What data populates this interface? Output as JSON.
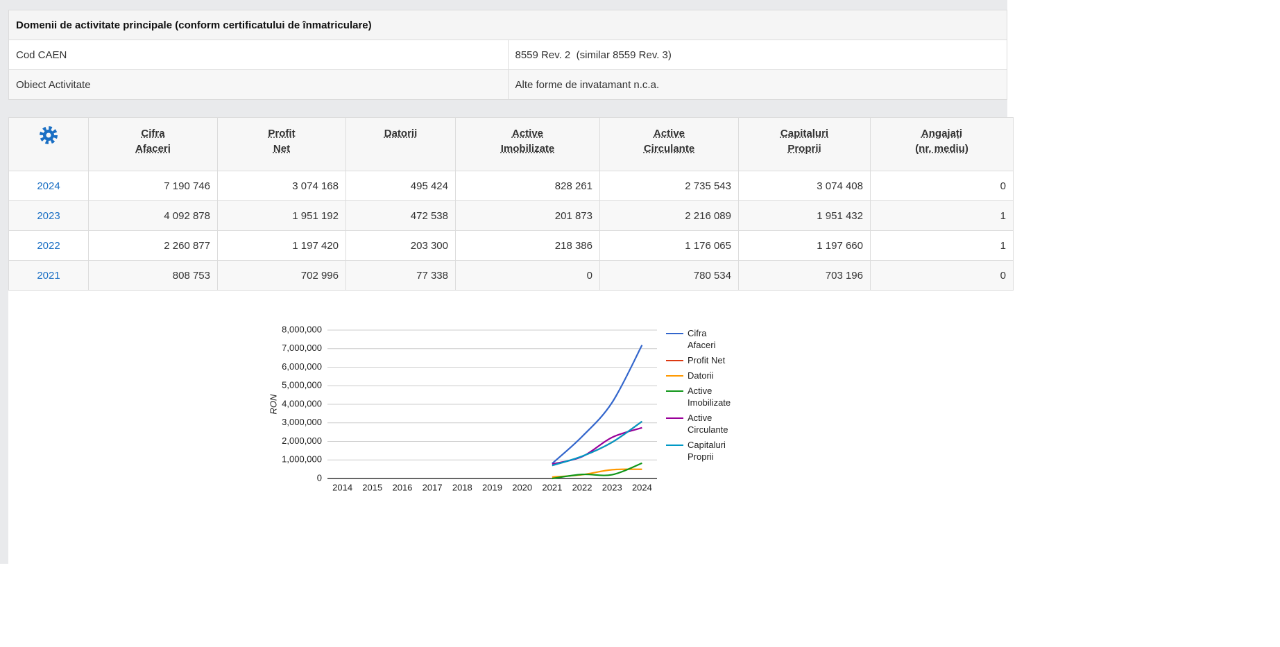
{
  "activities": {
    "title": "Domenii de activitate principale (conform certificatului de înmatriculare)",
    "rows": [
      [
        "Cod CAEN",
        "8559 Rev. 2  (similar 8559 Rev. 3)"
      ],
      [
        "Obiect Activitate",
        "Alte forme de invatamant n.c.a."
      ]
    ]
  },
  "financials": {
    "headers": [
      [
        "Cifra",
        "Afaceri"
      ],
      [
        "Profit",
        "Net"
      ],
      [
        "Datorii"
      ],
      [
        "Active",
        "Imobilizate"
      ],
      [
        "Active",
        "Circulante"
      ],
      [
        "Capitaluri",
        "Proprii"
      ],
      [
        "Angajați",
        "(nr. mediu)"
      ]
    ],
    "rows": [
      [
        "2024",
        "7 190 746",
        "3 074 168",
        "495 424",
        "828 261",
        "2 735 543",
        "3 074 408",
        "0"
      ],
      [
        "2023",
        "4 092 878",
        "1 951 192",
        "472 538",
        "201 873",
        "2 216 089",
        "1 951 432",
        "1"
      ],
      [
        "2022",
        "2 260 877",
        "1 197 420",
        "203 300",
        "218 386",
        "1 176 065",
        "1 197 660",
        "1"
      ],
      [
        "2021",
        "808 753",
        "702 996",
        "77 338",
        "0",
        "780 534",
        "703 196",
        "0"
      ]
    ]
  },
  "chart_data": {
    "type": "line",
    "ylabel": "RON",
    "categories": [
      "2014",
      "2015",
      "2016",
      "2017",
      "2018",
      "2019",
      "2020",
      "2021",
      "2022",
      "2023",
      "2024"
    ],
    "series": [
      {
        "name": "Cifra Afaceri",
        "color": "#3366cc",
        "values": [
          null,
          null,
          null,
          null,
          null,
          null,
          null,
          808753,
          2260877,
          4092878,
          7190746
        ]
      },
      {
        "name": "Profit Net",
        "color": "#dc3912",
        "values": [
          null,
          null,
          null,
          null,
          null,
          null,
          null,
          702996,
          1197420,
          1951192,
          3074168
        ]
      },
      {
        "name": "Datorii",
        "color": "#ff9900",
        "values": [
          null,
          null,
          null,
          null,
          null,
          null,
          null,
          77338,
          203300,
          472538,
          495424
        ]
      },
      {
        "name": "Active Imobilizate",
        "color": "#109618",
        "values": [
          null,
          null,
          null,
          null,
          null,
          null,
          null,
          0,
          218386,
          201873,
          828261
        ]
      },
      {
        "name": "Active Circulante",
        "color": "#990099",
        "values": [
          null,
          null,
          null,
          null,
          null,
          null,
          null,
          780534,
          1176065,
          2216089,
          2735543
        ]
      },
      {
        "name": "Capitaluri Proprii",
        "color": "#0099c6",
        "values": [
          null,
          null,
          null,
          null,
          null,
          null,
          null,
          703196,
          1197660,
          1951432,
          3074408
        ]
      }
    ],
    "ylim": [
      0,
      8000000
    ],
    "yticks": [
      0,
      {
        "value": 1000000,
        "label": "1,000,000"
      },
      {
        "value": 2000000,
        "label": "2,000,000"
      },
      {
        "value": 3000000,
        "label": "3,000,000"
      },
      {
        "value": 4000000,
        "label": "4,000,000"
      },
      {
        "value": 5000000,
        "label": "5,000,000"
      },
      {
        "value": 6000000,
        "label": "6,000,000"
      },
      {
        "value": 7000000,
        "label": "7,000,000"
      },
      {
        "value": 8000000,
        "label": "8,000,000"
      }
    ],
    "grid": true,
    "legend": "right"
  }
}
